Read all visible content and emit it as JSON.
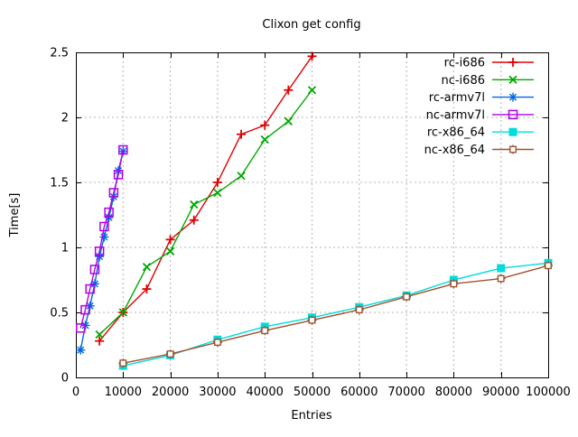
{
  "chart_data": {
    "type": "line",
    "title": "Clixon get config",
    "xlabel": "Entries",
    "ylabel": "Time[s]",
    "xlim": [
      0,
      100000
    ],
    "ylim": [
      0,
      2.5
    ],
    "xticks": [
      0,
      10000,
      20000,
      30000,
      40000,
      50000,
      60000,
      70000,
      80000,
      90000,
      100000
    ],
    "yticks": [
      0,
      0.5,
      1,
      1.5,
      2,
      2.5
    ],
    "grid": true,
    "grid_color": "#b4b4b4",
    "background_color": "#ffffff",
    "border_color": "#000000",
    "legend_position": "top-right-inside",
    "series": [
      {
        "name": "rc-i686",
        "color": "#e00000",
        "marker": "plus",
        "x": [
          5000,
          10000,
          15000,
          20000,
          25000,
          30000,
          35000,
          40000,
          45000,
          50000
        ],
        "y": [
          0.28,
          0.5,
          0.68,
          1.06,
          1.21,
          1.5,
          1.87,
          1.94,
          2.21,
          2.47
        ]
      },
      {
        "name": "nc-i686",
        "color": "#00a800",
        "marker": "cross",
        "x": [
          5000,
          10000,
          15000,
          20000,
          25000,
          30000,
          35000,
          40000,
          45000,
          50000
        ],
        "y": [
          0.33,
          0.5,
          0.85,
          0.97,
          1.33,
          1.42,
          1.55,
          1.83,
          1.97,
          2.21
        ]
      },
      {
        "name": "rc-armv7l",
        "color": "#0068e0",
        "marker": "asterisk",
        "x": [
          1000,
          2000,
          3000,
          4000,
          5000,
          6000,
          7000,
          8000,
          9000,
          10000
        ],
        "y": [
          0.21,
          0.4,
          0.55,
          0.72,
          0.93,
          1.08,
          1.23,
          1.39,
          1.59,
          1.74
        ]
      },
      {
        "name": "nc-armv7l",
        "color": "#b000e8",
        "marker": "open-square",
        "x": [
          1000,
          2000,
          3000,
          4000,
          5000,
          6000,
          7000,
          8000,
          9000,
          10000
        ],
        "y": [
          0.38,
          0.52,
          0.68,
          0.83,
          0.97,
          1.16,
          1.27,
          1.42,
          1.56,
          1.75
        ]
      },
      {
        "name": "rc-x86_64",
        "color": "#00dcdc",
        "marker": "filled-square",
        "x": [
          10000,
          20000,
          30000,
          40000,
          50000,
          60000,
          70000,
          80000,
          90000,
          100000
        ],
        "y": [
          0.09,
          0.17,
          0.29,
          0.39,
          0.46,
          0.54,
          0.63,
          0.75,
          0.84,
          0.88
        ]
      },
      {
        "name": "nc-x86_64",
        "color": "#a0522d",
        "marker": "open-square-plus",
        "x": [
          10000,
          20000,
          30000,
          40000,
          50000,
          60000,
          70000,
          80000,
          90000,
          100000
        ],
        "y": [
          0.11,
          0.18,
          0.27,
          0.36,
          0.44,
          0.52,
          0.62,
          0.72,
          0.76,
          0.86
        ]
      }
    ]
  }
}
